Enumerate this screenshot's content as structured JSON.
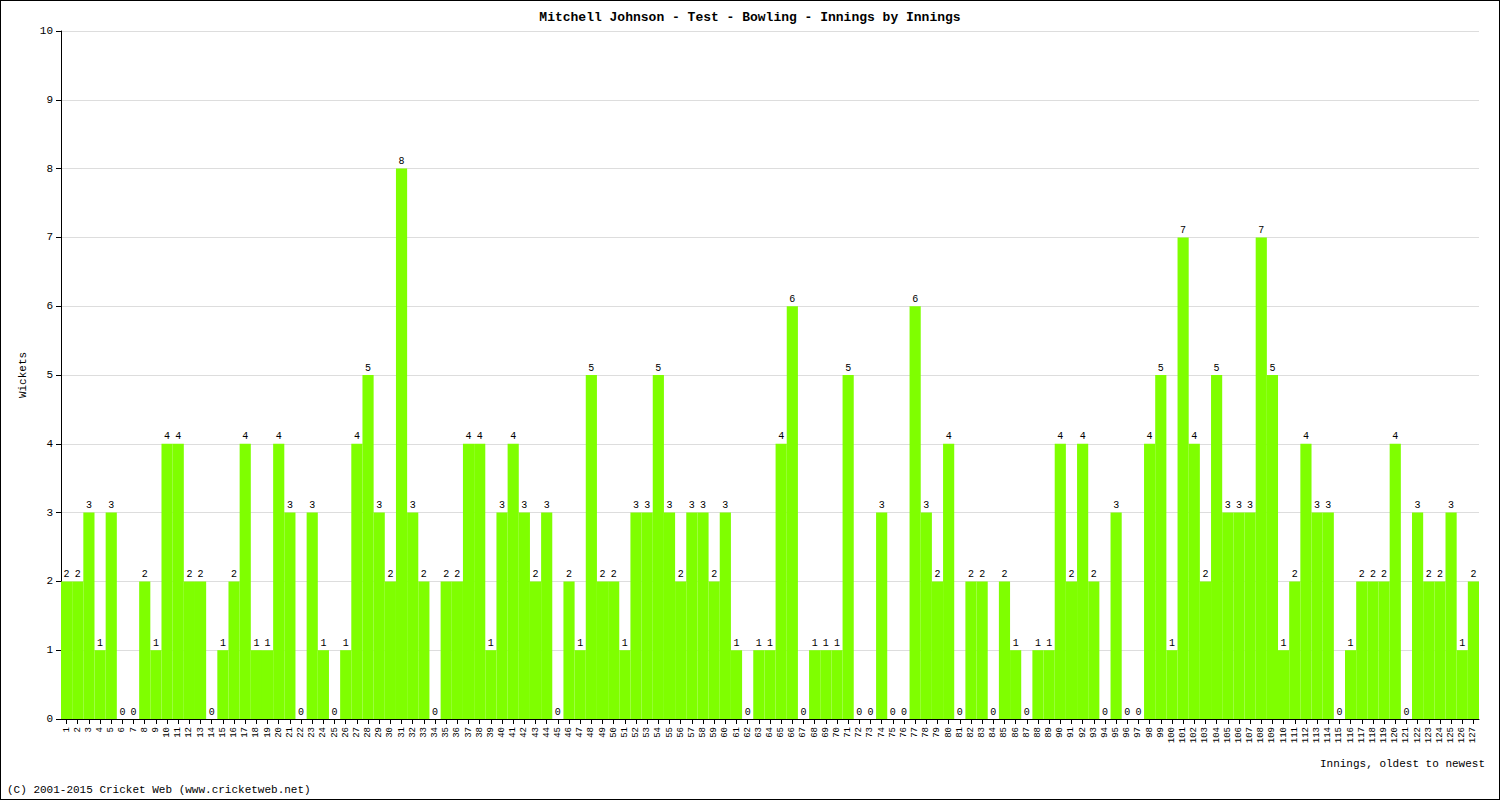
{
  "chart_data": {
    "type": "bar",
    "title": "Mitchell Johnson - Test - Bowling - Innings by Innings",
    "x_label": "Innings, oldest to newest",
    "y_label": "Wickets",
    "annotations": [
      "(C) 2001-2015 Cricket Web (www.cricketweb.net)"
    ],
    "categories": [
      "1",
      "2",
      "3",
      "4",
      "5",
      "6",
      "7",
      "8",
      "9",
      "10",
      "11",
      "12",
      "13",
      "14",
      "15",
      "16",
      "17",
      "18",
      "19",
      "20",
      "21",
      "22",
      "23",
      "24",
      "25",
      "26",
      "27",
      "28",
      "29",
      "30",
      "31",
      "32",
      "33",
      "34",
      "35",
      "36",
      "37",
      "38",
      "39",
      "40",
      "41",
      "42",
      "43",
      "44",
      "45",
      "46",
      "47",
      "48",
      "49",
      "50",
      "51",
      "52",
      "53",
      "54",
      "55",
      "56",
      "57",
      "58",
      "59",
      "60",
      "61",
      "62",
      "63",
      "64",
      "65",
      "66",
      "67",
      "68",
      "69",
      "70",
      "71",
      "72",
      "73",
      "74",
      "75",
      "76",
      "77",
      "78",
      "79",
      "80",
      "81",
      "82",
      "83",
      "84",
      "85",
      "86",
      "87",
      "88",
      "89",
      "90",
      "91",
      "92",
      "93",
      "94",
      "95",
      "96",
      "97",
      "98",
      "99",
      "100",
      "101",
      "102",
      "103",
      "104",
      "105",
      "106",
      "107",
      "108",
      "109",
      "110",
      "111",
      "112",
      "113",
      "114",
      "115",
      "116",
      "117",
      "118",
      "119",
      "120",
      "121",
      "122",
      "123",
      "124",
      "125",
      "126",
      "127"
    ],
    "values": [
      2,
      2,
      3,
      1,
      3,
      0,
      0,
      2,
      1,
      4,
      4,
      2,
      2,
      0,
      1,
      2,
      4,
      1,
      1,
      4,
      3,
      0,
      3,
      1,
      0,
      1,
      4,
      5,
      3,
      2,
      8,
      3,
      2,
      0,
      2,
      2,
      4,
      4,
      1,
      3,
      4,
      3,
      2,
      3,
      0,
      2,
      1,
      5,
      2,
      2,
      1,
      3,
      3,
      5,
      3,
      2,
      3,
      3,
      2,
      3,
      1,
      0,
      1,
      1,
      4,
      6,
      0,
      1,
      1,
      1,
      5,
      0,
      0,
      3,
      0,
      0,
      6,
      3,
      2,
      4,
      0,
      2,
      2,
      0,
      2,
      1,
      0,
      1,
      1,
      4,
      2,
      4,
      2,
      0,
      3,
      0,
      0,
      4,
      5,
      1,
      7,
      4,
      2,
      5,
      3,
      3,
      3,
      7,
      5,
      1,
      2,
      4,
      3,
      3,
      0,
      1,
      2,
      2,
      2,
      4,
      0,
      3,
      2,
      2,
      3,
      1,
      2
    ],
    "color": "#7fff00",
    "ylim": [
      0,
      10
    ],
    "yticks": [
      0,
      1,
      2,
      3,
      4,
      5,
      6,
      7,
      8,
      9,
      10
    ],
    "grid": true,
    "data_labels": true
  }
}
